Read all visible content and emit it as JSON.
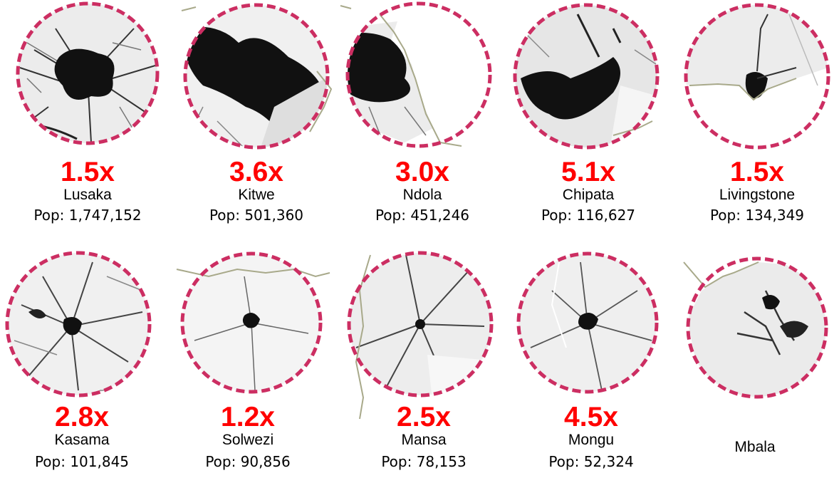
{
  "colors": {
    "ring": "#cc2e62",
    "multiplier": "#ff0000",
    "urban": "#111111",
    "rural": "#f2f2f2",
    "border": "#a8a98a"
  },
  "cities": [
    {
      "name": "Lusaka",
      "multiplier": "1.5x",
      "population": "Pop: 1,747,152"
    },
    {
      "name": "Kitwe",
      "multiplier": "3.6x",
      "population": "Pop: 501,360"
    },
    {
      "name": "Ndola",
      "multiplier": "3.0x",
      "population": "Pop: 451,246"
    },
    {
      "name": "Chipata",
      "multiplier": "5.1x",
      "population": "Pop: 116,627"
    },
    {
      "name": "Livingstone",
      "multiplier": "1.5x",
      "population": "Pop: 134,349"
    },
    {
      "name": "Kasama",
      "multiplier": "2.8x",
      "population": "Pop: 101,845"
    },
    {
      "name": "Solwezi",
      "multiplier": "1.2x",
      "population": "Pop: 90,856"
    },
    {
      "name": "Mansa",
      "multiplier": "2.5x",
      "population": "Pop: 78,153"
    },
    {
      "name": "Mongu",
      "multiplier": "4.5x",
      "population": "Pop: 52,324"
    },
    {
      "name": "Mbala",
      "multiplier": "",
      "population": ""
    }
  ]
}
